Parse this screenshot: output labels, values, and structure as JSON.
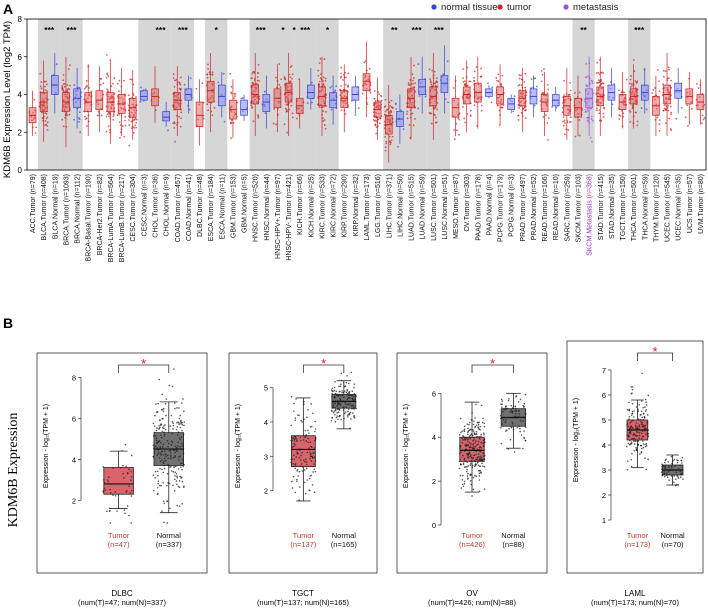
{
  "panel_a": {
    "label": "A",
    "ylabel": "KDM6B Expression Level (log2 TPM)",
    "ylim": [
      0,
      8
    ],
    "yticks": [
      "0",
      "2",
      "4",
      "6",
      "8"
    ],
    "legend": [
      {
        "label": "normal tissue",
        "color": "#3344dd"
      },
      {
        "label": "tumor",
        "color": "#dd2222"
      },
      {
        "label": "metastasis",
        "color": "#9955dd"
      }
    ]
  },
  "panel_b": {
    "label": "B",
    "ylabel": "KDM6B Expression"
  },
  "colors": {
    "tumor_box": "#e06666",
    "tumor_pts": "#cc2222",
    "normal_box": "#8888ee",
    "normal_pts": "#3344dd",
    "meta_box": "#b799ee",
    "shade": "#d6d6d6",
    "b_tumor_box": "#d9646b",
    "b_normal_box": "#707070",
    "b_tumor_text": "#c0392b",
    "sig_red": "#dd2222"
  },
  "chart_data": [
    {
      "type": "box",
      "title": "",
      "ylabel": "KDM6B Expression Level (log2 TPM)",
      "ylim": [
        0,
        8
      ],
      "categories": [
        {
          "label": "ACC.Tumor (n=79)",
          "kind": "tumor",
          "median": 2.9,
          "q1": 2.5,
          "q3": 3.3,
          "lo": 1.8,
          "hi": 4.2,
          "sig": "",
          "shade": false
        },
        {
          "label": "BLCA.Tumor (n=408)",
          "kind": "tumor",
          "median": 3.6,
          "q1": 3.1,
          "q3": 4.1,
          "lo": 1.5,
          "hi": 5.8,
          "sig": "***",
          "shade": true
        },
        {
          "label": "BLCA.Normal (n=19)",
          "kind": "normal",
          "median": 4.5,
          "q1": 4.0,
          "q3": 5.0,
          "lo": 3.0,
          "hi": 6.2,
          "sig": "",
          "shade": true
        },
        {
          "label": "BRCA.Tumor (n=1093)",
          "kind": "tumor",
          "median": 3.6,
          "q1": 3.1,
          "q3": 4.1,
          "lo": 1.2,
          "hi": 6.0,
          "sig": "***",
          "shade": true
        },
        {
          "label": "BRCA.Normal (n=112)",
          "kind": "normal",
          "median": 3.8,
          "q1": 3.3,
          "q3": 4.3,
          "lo": 2.2,
          "hi": 5.4,
          "sig": "",
          "shade": true
        },
        {
          "label": "BRCA-Basal.Tumor (n=190)",
          "kind": "tumor",
          "median": 3.6,
          "q1": 3.1,
          "q3": 4.1,
          "lo": 1.8,
          "hi": 5.6,
          "sig": "",
          "shade": false
        },
        {
          "label": "BRCA-Her2.Tumor (n=82)",
          "kind": "tumor",
          "median": 3.7,
          "q1": 3.2,
          "q3": 4.2,
          "lo": 2.0,
          "hi": 5.5,
          "sig": "",
          "shade": false
        },
        {
          "label": "BRCA-LumA.Tumor (n=564)",
          "kind": "tumor",
          "median": 3.6,
          "q1": 3.1,
          "q3": 4.1,
          "lo": 1.4,
          "hi": 5.8,
          "sig": "",
          "shade": false
        },
        {
          "label": "BRCA-LumB.Tumor (n=217)",
          "kind": "tumor",
          "median": 3.5,
          "q1": 3.0,
          "q3": 4.0,
          "lo": 1.8,
          "hi": 5.4,
          "sig": "",
          "shade": false
        },
        {
          "label": "CESC.Tumor (n=304)",
          "kind": "tumor",
          "median": 3.3,
          "q1": 2.8,
          "q3": 3.8,
          "lo": 1.6,
          "hi": 5.3,
          "sig": "",
          "shade": false
        },
        {
          "label": "CESC.Normal (n=3)",
          "kind": "normal",
          "median": 3.9,
          "q1": 3.7,
          "q3": 4.2,
          "lo": 3.6,
          "hi": 4.3,
          "sig": "",
          "shade": true
        },
        {
          "label": "CHOL.Tumor (n=36)",
          "kind": "tumor",
          "median": 3.9,
          "q1": 3.4,
          "q3": 4.3,
          "lo": 2.5,
          "hi": 5.5,
          "sig": "***",
          "shade": true
        },
        {
          "label": "CHOL.Normal (n=9)",
          "kind": "normal",
          "median": 2.8,
          "q1": 2.6,
          "q3": 3.1,
          "lo": 2.3,
          "hi": 3.6,
          "sig": "",
          "shade": true
        },
        {
          "label": "COAD.Tumor (n=457)",
          "kind": "tumor",
          "median": 3.7,
          "q1": 3.2,
          "q3": 4.1,
          "lo": 1.8,
          "hi": 5.5,
          "sig": "***",
          "shade": true
        },
        {
          "label": "COAD.Normal (n=41)",
          "kind": "normal",
          "median": 4.0,
          "q1": 3.7,
          "q3": 4.3,
          "lo": 3.0,
          "hi": 5.0,
          "sig": "",
          "shade": true
        },
        {
          "label": "DLBC.Tumor (n=48)",
          "kind": "tumor",
          "median": 2.9,
          "q1": 2.3,
          "q3": 3.6,
          "lo": 1.3,
          "hi": 4.8,
          "sig": "",
          "shade": false
        },
        {
          "label": "ESCA.Tumor (n=184)",
          "kind": "tumor",
          "median": 4.2,
          "q1": 3.6,
          "q3": 4.7,
          "lo": 2.0,
          "hi": 6.2,
          "sig": "*",
          "shade": true
        },
        {
          "label": "ESCA.Normal (n=11)",
          "kind": "normal",
          "median": 3.9,
          "q1": 3.4,
          "q3": 4.5,
          "lo": 2.8,
          "hi": 5.2,
          "sig": "",
          "shade": true
        },
        {
          "label": "GBM.Tumor (n=153)",
          "kind": "tumor",
          "median": 3.2,
          "q1": 2.7,
          "q3": 3.7,
          "lo": 1.7,
          "hi": 4.8,
          "sig": "",
          "shade": false
        },
        {
          "label": "GBM.Normal (n=5)",
          "kind": "normal",
          "median": 3.2,
          "q1": 2.9,
          "q3": 3.7,
          "lo": 2.6,
          "hi": 4.0,
          "sig": "",
          "shade": false
        },
        {
          "label": "HNSC.Tumor (n=520)",
          "kind": "tumor",
          "median": 4.0,
          "q1": 3.5,
          "q3": 4.5,
          "lo": 1.8,
          "hi": 6.2,
          "sig": "***",
          "shade": true
        },
        {
          "label": "HNSC.Normal (n=44)",
          "kind": "normal",
          "median": 3.6,
          "q1": 3.1,
          "q3": 4.0,
          "lo": 2.2,
          "hi": 5.0,
          "sig": "",
          "shade": true
        },
        {
          "label": "HNSC-HPV+.Tumor (n=97)",
          "kind": "tumor",
          "median": 3.8,
          "q1": 3.3,
          "q3": 4.3,
          "lo": 2.0,
          "hi": 5.6,
          "sig": "*",
          "shade": true
        },
        {
          "label": "HNSC-HPV-.Tumor (n=421)",
          "kind": "tumor",
          "median": 4.1,
          "q1": 3.6,
          "q3": 4.6,
          "lo": 1.8,
          "hi": 6.2,
          "sig": "*",
          "shade": true
        },
        {
          "label": "KICH.Tumor (n=66)",
          "kind": "tumor",
          "median": 3.4,
          "q1": 3.0,
          "q3": 3.8,
          "lo": 2.2,
          "hi": 4.8,
          "sig": "***",
          "shade": true
        },
        {
          "label": "KICH.Normal (n=25)",
          "kind": "normal",
          "median": 4.1,
          "q1": 3.8,
          "q3": 4.5,
          "lo": 3.2,
          "hi": 5.4,
          "sig": "",
          "shade": true
        },
        {
          "label": "KIRC.Tumor (n=533)",
          "kind": "tumor",
          "median": 3.9,
          "q1": 3.4,
          "q3": 4.4,
          "lo": 1.8,
          "hi": 6.0,
          "sig": "*",
          "shade": true
        },
        {
          "label": "KIRC.Normal (n=72)",
          "kind": "normal",
          "median": 3.7,
          "q1": 3.3,
          "q3": 4.1,
          "lo": 2.4,
          "hi": 5.0,
          "sig": "",
          "shade": true
        },
        {
          "label": "KIRP.Tumor (n=290)",
          "kind": "tumor",
          "median": 3.8,
          "q1": 3.3,
          "q3": 4.2,
          "lo": 2.0,
          "hi": 5.6,
          "sig": "",
          "shade": false
        },
        {
          "label": "KIRP.Normal (n=32)",
          "kind": "normal",
          "median": 4.0,
          "q1": 3.7,
          "q3": 4.4,
          "lo": 3.0,
          "hi": 5.0,
          "sig": "",
          "shade": false
        },
        {
          "label": "LAML.Tumor (n=173)",
          "kind": "tumor",
          "median": 4.7,
          "q1": 4.2,
          "q3": 5.1,
          "lo": 2.8,
          "hi": 6.8,
          "sig": "",
          "shade": false
        },
        {
          "label": "LGG.Tumor (n=516)",
          "kind": "tumor",
          "median": 3.2,
          "q1": 2.8,
          "q3": 3.6,
          "lo": 1.6,
          "hi": 4.9,
          "sig": "",
          "shade": false
        },
        {
          "label": "LIHC.Tumor (n=371)",
          "kind": "tumor",
          "median": 2.4,
          "q1": 1.9,
          "q3": 2.9,
          "lo": 0.4,
          "hi": 4.5,
          "sig": "**",
          "shade": true
        },
        {
          "label": "LIHC.Normal (n=50)",
          "kind": "normal",
          "median": 2.7,
          "q1": 2.3,
          "q3": 3.1,
          "lo": 1.4,
          "hi": 4.0,
          "sig": "",
          "shade": true
        },
        {
          "label": "LUAD.Tumor (n=515)",
          "kind": "tumor",
          "median": 3.8,
          "q1": 3.3,
          "q3": 4.3,
          "lo": 1.6,
          "hi": 6.0,
          "sig": "***",
          "shade": true
        },
        {
          "label": "LUAD.Normal (n=59)",
          "kind": "normal",
          "median": 4.4,
          "q1": 4.0,
          "q3": 4.8,
          "lo": 3.0,
          "hi": 6.0,
          "sig": "",
          "shade": true
        },
        {
          "label": "LUSC.Tumor (n=501)",
          "kind": "tumor",
          "median": 3.9,
          "q1": 3.4,
          "q3": 4.4,
          "lo": 1.6,
          "hi": 6.2,
          "sig": "***",
          "shade": true
        },
        {
          "label": "LUSC.Normal (n=51)",
          "kind": "normal",
          "median": 4.6,
          "q1": 4.1,
          "q3": 5.0,
          "lo": 3.0,
          "hi": 6.6,
          "sig": "",
          "shade": true
        },
        {
          "label": "MESO.Tumor (n=87)",
          "kind": "tumor",
          "median": 3.3,
          "q1": 2.8,
          "q3": 3.8,
          "lo": 1.8,
          "hi": 5.0,
          "sig": "",
          "shade": false
        },
        {
          "label": "OV.Tumor (n=303)",
          "kind": "tumor",
          "median": 4.0,
          "q1": 3.5,
          "q3": 4.4,
          "lo": 2.0,
          "hi": 5.8,
          "sig": "",
          "shade": false
        },
        {
          "label": "PAAD.Tumor (n=178)",
          "kind": "tumor",
          "median": 4.1,
          "q1": 3.6,
          "q3": 4.6,
          "lo": 2.2,
          "hi": 6.0,
          "sig": "",
          "shade": false
        },
        {
          "label": "PAAD.Normal (n=4)",
          "kind": "normal",
          "median": 4.1,
          "q1": 3.9,
          "q3": 4.3,
          "lo": 3.8,
          "hi": 4.5,
          "sig": "",
          "shade": false
        },
        {
          "label": "PCPG.Tumor (n=179)",
          "kind": "tumor",
          "median": 4.0,
          "q1": 3.5,
          "q3": 4.4,
          "lo": 2.4,
          "hi": 5.6,
          "sig": "",
          "shade": false
        },
        {
          "label": "PCPG.Normal (n=3)",
          "kind": "normal",
          "median": 3.5,
          "q1": 3.2,
          "q3": 3.8,
          "lo": 3.0,
          "hi": 4.0,
          "sig": "",
          "shade": false
        },
        {
          "label": "PRAD.Tumor (n=497)",
          "kind": "tumor",
          "median": 3.8,
          "q1": 3.4,
          "q3": 4.2,
          "lo": 2.0,
          "hi": 5.4,
          "sig": "",
          "shade": false
        },
        {
          "label": "PRAD.Normal (n=52)",
          "kind": "normal",
          "median": 3.9,
          "q1": 3.5,
          "q3": 4.3,
          "lo": 2.8,
          "hi": 5.0,
          "sig": "",
          "shade": false
        },
        {
          "label": "READ.Tumor (n=166)",
          "kind": "tumor",
          "median": 3.6,
          "q1": 3.1,
          "q3": 4.0,
          "lo": 1.8,
          "hi": 5.2,
          "sig": "",
          "shade": false
        },
        {
          "label": "READ.Normal (n=10)",
          "kind": "normal",
          "median": 3.7,
          "q1": 3.4,
          "q3": 4.0,
          "lo": 3.1,
          "hi": 4.4,
          "sig": "",
          "shade": false
        },
        {
          "label": "SARC.Tumor (n=259)",
          "kind": "tumor",
          "median": 3.4,
          "q1": 2.9,
          "q3": 3.9,
          "lo": 1.6,
          "hi": 5.4,
          "sig": "",
          "shade": false
        },
        {
          "label": "SKCM.Tumor (n=103)",
          "kind": "tumor",
          "median": 3.3,
          "q1": 2.8,
          "q3": 3.8,
          "lo": 1.8,
          "hi": 5.0,
          "sig": "**",
          "shade": true
        },
        {
          "label": "SKCM.Metastasis (n=368)",
          "kind": "meta",
          "median": 3.8,
          "q1": 3.3,
          "q3": 4.3,
          "lo": 1.8,
          "hi": 6.0,
          "sig": "",
          "shade": true
        },
        {
          "label": "STAD.Tumor (n=415)",
          "kind": "tumor",
          "median": 3.9,
          "q1": 3.4,
          "q3": 4.4,
          "lo": 1.8,
          "hi": 6.0,
          "sig": "",
          "shade": false
        },
        {
          "label": "STAD.Normal (n=35)",
          "kind": "normal",
          "median": 4.1,
          "q1": 3.7,
          "q3": 4.5,
          "lo": 2.8,
          "hi": 5.4,
          "sig": "",
          "shade": false
        },
        {
          "label": "TGCT.Tumor (n=150)",
          "kind": "tumor",
          "median": 3.6,
          "q1": 3.2,
          "q3": 4.0,
          "lo": 2.2,
          "hi": 5.2,
          "sig": "",
          "shade": false
        },
        {
          "label": "THCA.Tumor (n=501)",
          "kind": "tumor",
          "median": 3.9,
          "q1": 3.5,
          "q3": 4.3,
          "lo": 2.2,
          "hi": 5.6,
          "sig": "***",
          "shade": true
        },
        {
          "label": "THCA.Normal (n=59)",
          "kind": "normal",
          "median": 4.1,
          "q1": 3.7,
          "q3": 4.5,
          "lo": 3.0,
          "hi": 5.4,
          "sig": "",
          "shade": true
        },
        {
          "label": "THYM.Tumor (n=120)",
          "kind": "tumor",
          "median": 3.4,
          "q1": 2.9,
          "q3": 3.9,
          "lo": 1.8,
          "hi": 5.0,
          "sig": "",
          "shade": false
        },
        {
          "label": "UCEC.Tumor (n=545)",
          "kind": "tumor",
          "median": 4.0,
          "q1": 3.5,
          "q3": 4.5,
          "lo": 1.8,
          "hi": 6.2,
          "sig": "",
          "shade": false
        },
        {
          "label": "UCEC.Normal (n=35)",
          "kind": "normal",
          "median": 4.2,
          "q1": 3.8,
          "q3": 4.6,
          "lo": 3.0,
          "hi": 5.4,
          "sig": "",
          "shade": false
        },
        {
          "label": "UCS.Tumor (n=57)",
          "kind": "tumor",
          "median": 3.9,
          "q1": 3.5,
          "q3": 4.3,
          "lo": 2.4,
          "hi": 5.2,
          "sig": "",
          "shade": false
        },
        {
          "label": "UVM.Tumor (n=80)",
          "kind": "tumor",
          "median": 3.6,
          "q1": 3.2,
          "q3": 4.0,
          "lo": 2.4,
          "hi": 4.8,
          "sig": "",
          "shade": false
        }
      ]
    },
    {
      "type": "box",
      "title": "DLBC",
      "ylabel": "Expression - log₂(TPM + 1)",
      "ylim": [
        0.8,
        8.5
      ],
      "yticks": [
        2,
        4,
        6,
        8
      ],
      "sig": "*",
      "footer": "(num(T)=47; num(N)=337)",
      "groups": [
        {
          "label": "Tumor",
          "n": "(n=47)",
          "kind": "tumor",
          "median": 2.8,
          "q1": 2.3,
          "q3": 3.6,
          "lo": 1.6,
          "hi": 4.4,
          "npts": 47
        },
        {
          "label": "Normal",
          "n": "(n=337)",
          "kind": "normal",
          "median": 4.5,
          "q1": 3.7,
          "q3": 5.3,
          "lo": 1.4,
          "hi": 6.8,
          "npts": 240
        }
      ]
    },
    {
      "type": "box",
      "title": "TGCT",
      "ylabel": "Expression - log₂(TPM + 1)",
      "ylim": [
        1.0,
        5.6
      ],
      "yticks": [
        2,
        3,
        4,
        5
      ],
      "sig": "*",
      "footer": "(num(T)=137; num(N)=165)",
      "groups": [
        {
          "label": "Tumor",
          "n": "(n=137)",
          "kind": "tumor",
          "median": 3.2,
          "q1": 2.7,
          "q3": 3.6,
          "lo": 1.7,
          "hi": 4.7,
          "npts": 137
        },
        {
          "label": "Normal",
          "n": "(n=165)",
          "kind": "normal",
          "median": 4.6,
          "q1": 4.4,
          "q3": 4.8,
          "lo": 3.8,
          "hi": 5.2,
          "npts": 165
        }
      ]
    },
    {
      "type": "box",
      "title": "OV",
      "ylabel": "Expression - log₂(TPM + 1)",
      "ylim": [
        0,
        7.2
      ],
      "yticks": [
        0,
        2,
        4,
        6
      ],
      "sig": "*",
      "footer": "(num(T)=426; num(N)=88)",
      "groups": [
        {
          "label": "Tumor",
          "n": "(n=426)",
          "kind": "tumor",
          "median": 3.4,
          "q1": 2.9,
          "q3": 4.0,
          "lo": 1.5,
          "hi": 5.6,
          "npts": 260
        },
        {
          "label": "Normal",
          "n": "(n=88)",
          "kind": "normal",
          "median": 4.9,
          "q1": 4.5,
          "q3": 5.3,
          "lo": 3.5,
          "hi": 6.0,
          "npts": 88
        }
      ]
    },
    {
      "type": "box",
      "title": "LAML",
      "ylabel": "Expression - log₂(TPM + 1)",
      "ylim": [
        0.8,
        7.6
      ],
      "yticks": [
        1,
        2,
        3,
        4,
        5,
        6,
        7
      ],
      "sig": "*",
      "footer": "(num(T)=173; num(N)=70)",
      "groups": [
        {
          "label": "Tumor",
          "n": "(n=173)",
          "kind": "tumor",
          "median": 4.6,
          "q1": 4.2,
          "q3": 5.0,
          "lo": 3.1,
          "hi": 5.8,
          "npts": 173
        },
        {
          "label": "Normal",
          "n": "(n=70)",
          "kind": "normal",
          "median": 3.0,
          "q1": 2.8,
          "q3": 3.2,
          "lo": 2.4,
          "hi": 3.6,
          "npts": 70
        }
      ]
    }
  ]
}
